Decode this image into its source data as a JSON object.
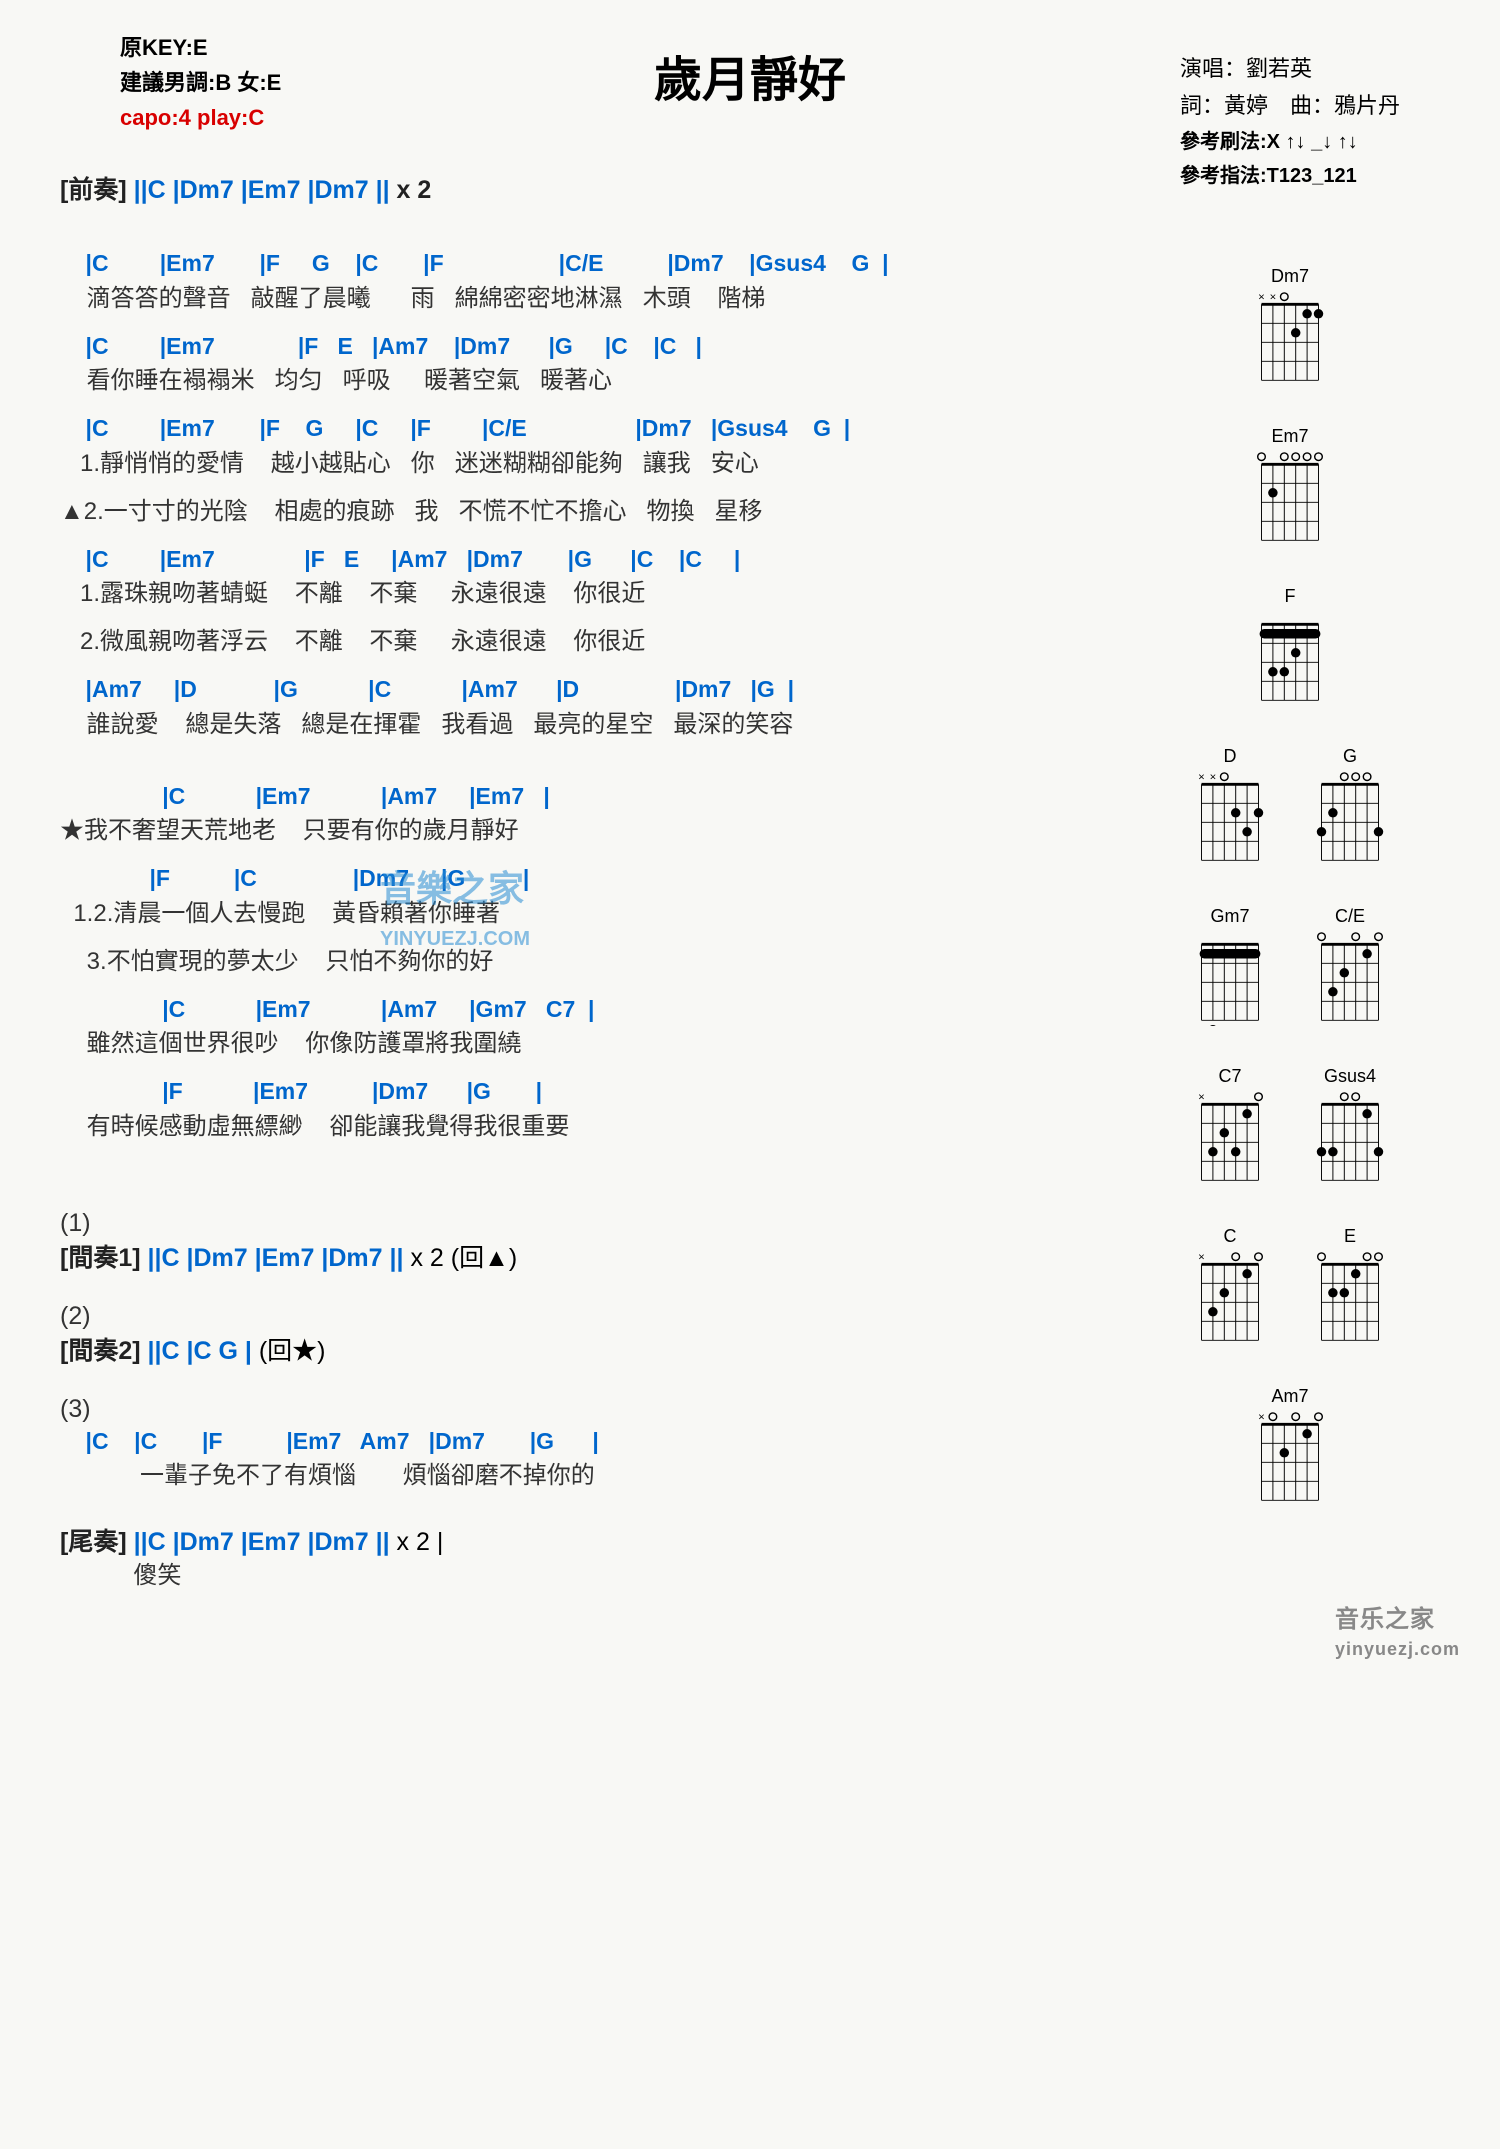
{
  "title": "歲月靜好",
  "meta_left": {
    "key": "原KEY:E",
    "suggest": "建議男調:B 女:E",
    "capo": "capo:4 play:C"
  },
  "meta_right": {
    "singer": "演唱：劉若英",
    "writer": "詞：黃婷　曲：鴉片丹",
    "strum": "參考刷法:X ↑↓ _↓ ↑↓",
    "finger": "參考指法:T123_121"
  },
  "intro": {
    "label": "[前奏]",
    "chords": "||C   |Dm7   |Em7   |Dm7   ||",
    "repeat": "x 2"
  },
  "verse1": [
    {
      "c": "    |C        |Em7       |F     G    |C       |F                  |C/E          |Dm7    |Gsus4    G  |",
      "l": "    滴答答的聲音   敲醒了晨曦      雨   綿綿密密地淋濕   木頭    階梯"
    },
    {
      "c": "    |C        |Em7             |F   E   |Am7    |Dm7      |G     |C    |C   |",
      "l": "    看你睡在褟褟米   均匀   呼吸     暖著空氣   暖著心"
    },
    {
      "c": "    |C        |Em7       |F    G     |C     |F        |C/E                 |Dm7   |Gsus4    G  |",
      "l": "   1.靜悄悄的愛情    越小越貼心   你   迷迷糊糊卻能夠   讓我   安心"
    },
    {
      "c": "",
      "l": "▲2.一寸寸的光陰    相處的痕跡   我   不慌不忙不擔心   物換   星移"
    },
    {
      "c": "    |C        |Em7              |F   E     |Am7   |Dm7       |G      |C    |C     |",
      "l": "   1.露珠親吻著蜻蜓    不離    不棄     永遠很遠    你很近"
    },
    {
      "c": "",
      "l": "   2.微風親吻著浮云    不離    不棄     永遠很遠    你很近"
    },
    {
      "c": "    |Am7     |D            |G           |C           |Am7      |D               |Dm7   |G  |",
      "l": "    誰說愛    總是失落   總是在揮霍   我看過   最亮的星空   最深的笑容"
    }
  ],
  "chorus": [
    {
      "c": "                |C           |Em7           |Am7     |Em7   |",
      "l": "★我不奢望天荒地老    只要有你的歲月靜好"
    },
    {
      "c": "              |F          |C               |Dm7     |G         |",
      "l": "  1.2.清晨一個人去慢跑    黃昏賴著你睡著"
    },
    {
      "c": "",
      "l": "    3.不怕實現的夢太少    只怕不夠你的好"
    },
    {
      "c": "                |C           |Em7           |Am7     |Gm7   C7  |",
      "l": "    雖然這個世界很吵    你像防護罩將我圍繞"
    },
    {
      "c": "                |F           |Em7          |Dm7      |G       |",
      "l": "    有時候感動虛無縹緲    卻能讓我覺得我很重要"
    }
  ],
  "inter1": {
    "num": "(1)",
    "label": "[間奏1]",
    "chords": "||C   |Dm7   |Em7   |Dm7   ||",
    "repeat": "x 2  (回▲)"
  },
  "inter2": {
    "num": "(2)",
    "label": "[間奏2]",
    "chords": "||C   |C   G   |",
    "repeat": "(回★)"
  },
  "bridge": {
    "num": "(3)",
    "c": "    |C    |C       |F          |Em7   Am7   |Dm7       |G      |",
    "l": "            一輩子免不了有煩惱       煩惱卻磨不掉你的"
  },
  "outro": {
    "label": "[尾奏]",
    "chords": "||C   |Dm7   |Em7   |Dm7   ||",
    "repeat": "x 2    |",
    "lyric": "           傻笑"
  },
  "diagrams": [
    [
      {
        "name": "Dm7",
        "frets": "xx0211",
        "dots": [
          [
            1,
            1
          ],
          [
            1,
            2
          ],
          [
            2,
            3
          ]
        ]
      }
    ],
    [
      {
        "name": "Em7",
        "frets": "020000",
        "dots": [
          [
            2,
            5
          ]
        ]
      }
    ],
    [
      {
        "name": "F",
        "frets": "133211",
        "barre": 1,
        "dots": [
          [
            3,
            5
          ],
          [
            3,
            4
          ],
          [
            2,
            3
          ]
        ]
      }
    ],
    [
      {
        "name": "D",
        "frets": "xx0232",
        "dots": [
          [
            2,
            1
          ],
          [
            3,
            2
          ],
          [
            2,
            3
          ]
        ]
      },
      {
        "name": "G",
        "frets": "320003",
        "dots": [
          [
            3,
            6
          ],
          [
            2,
            5
          ],
          [
            3,
            1
          ]
        ]
      }
    ],
    [
      {
        "name": "Gm7",
        "frets": "353333",
        "barre": 3,
        "dots": [
          [
            5,
            5
          ]
        ]
      },
      {
        "name": "C/E",
        "frets": "032010",
        "dots": [
          [
            3,
            5
          ],
          [
            2,
            4
          ],
          [
            1,
            2
          ]
        ]
      }
    ],
    [
      {
        "name": "C7",
        "frets": "x32310",
        "dots": [
          [
            3,
            5
          ],
          [
            2,
            4
          ],
          [
            3,
            3
          ],
          [
            1,
            2
          ]
        ]
      },
      {
        "name": "Gsus4",
        "frets": "330013",
        "dots": [
          [
            3,
            6
          ],
          [
            3,
            5
          ],
          [
            1,
            2
          ],
          [
            3,
            1
          ]
        ]
      }
    ],
    [
      {
        "name": "C",
        "frets": "x32010",
        "dots": [
          [
            3,
            5
          ],
          [
            2,
            4
          ],
          [
            1,
            2
          ]
        ]
      },
      {
        "name": "E",
        "frets": "022100",
        "dots": [
          [
            2,
            5
          ],
          [
            2,
            4
          ],
          [
            1,
            3
          ]
        ]
      }
    ],
    [
      {
        "name": "Am7",
        "frets": "x02010",
        "dots": [
          [
            2,
            4
          ],
          [
            1,
            2
          ]
        ]
      }
    ]
  ],
  "wm_center": "音樂之家",
  "wm_sub": "YINYUEZJ.COM",
  "wm_corner_1": "音乐之家",
  "wm_corner_2": "yinyuezj.com"
}
